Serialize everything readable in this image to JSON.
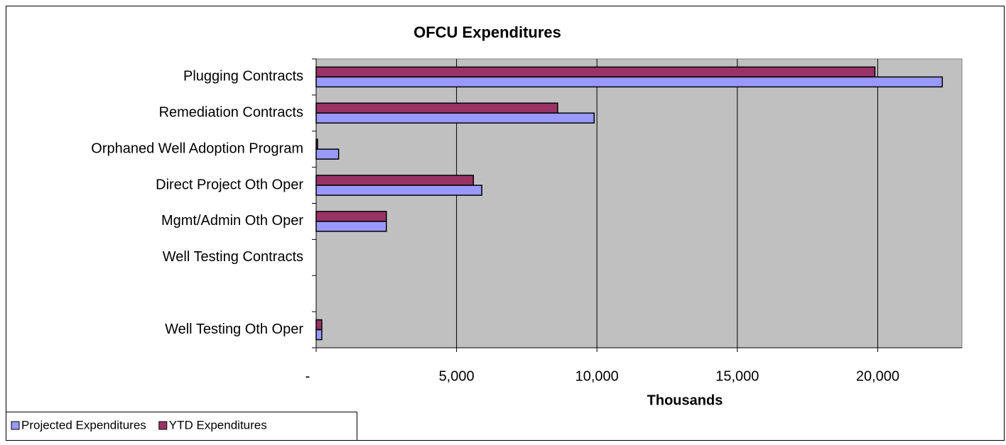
{
  "chart_data": {
    "type": "hbar",
    "title": "OFCU Expenditures",
    "x_label": "Thousands",
    "categories": [
      "Plugging Contracts",
      "Remediation Contracts",
      "Orphaned Well Adoption Program",
      "Direct Project Oth Oper",
      "Mgmt/Admin Oth Oper",
      "Well Testing Contracts",
      null,
      "Well Testing Oth Oper"
    ],
    "series": [
      {
        "name": "Projected Expenditures",
        "color": "#9999ff",
        "values": [
          22300,
          9900,
          800,
          5900,
          2500,
          0,
          null,
          200
        ]
      },
      {
        "name": "YTD Expenditures",
        "color": "#993366",
        "values": [
          19900,
          8600,
          50,
          5600,
          2500,
          0,
          null,
          200
        ]
      }
    ],
    "xlim": [
      0,
      23000
    ],
    "xticks": [
      {
        "value": 0,
        "label": "-"
      },
      {
        "value": 5000,
        "label": "5,000"
      },
      {
        "value": 10000,
        "label": "10,000"
      },
      {
        "value": 15000,
        "label": "15,000"
      },
      {
        "value": 20000,
        "label": "20,000"
      }
    ],
    "grid": true,
    "legend": "bottom-left",
    "background": "#c0c0c0"
  }
}
